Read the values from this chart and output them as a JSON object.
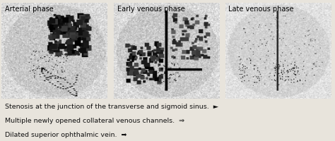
{
  "panel_labels": [
    "Arterial phase",
    "Early venous phase",
    "Late venous phase"
  ],
  "legend_lines": [
    {
      "text": "Stenosis at the junction of the transverse and sigmoid sinus.",
      "symbol": "►"
    },
    {
      "text": "Multiple newly opened collateral venous channels.",
      "symbol": "⇒"
    },
    {
      "text": "Dilated superior ophthalmic vein.",
      "symbol": "➡"
    }
  ],
  "bg_color": "#e8e4dc",
  "text_color": "#111111",
  "label_fontsize": 7.0,
  "legend_fontsize": 6.8
}
